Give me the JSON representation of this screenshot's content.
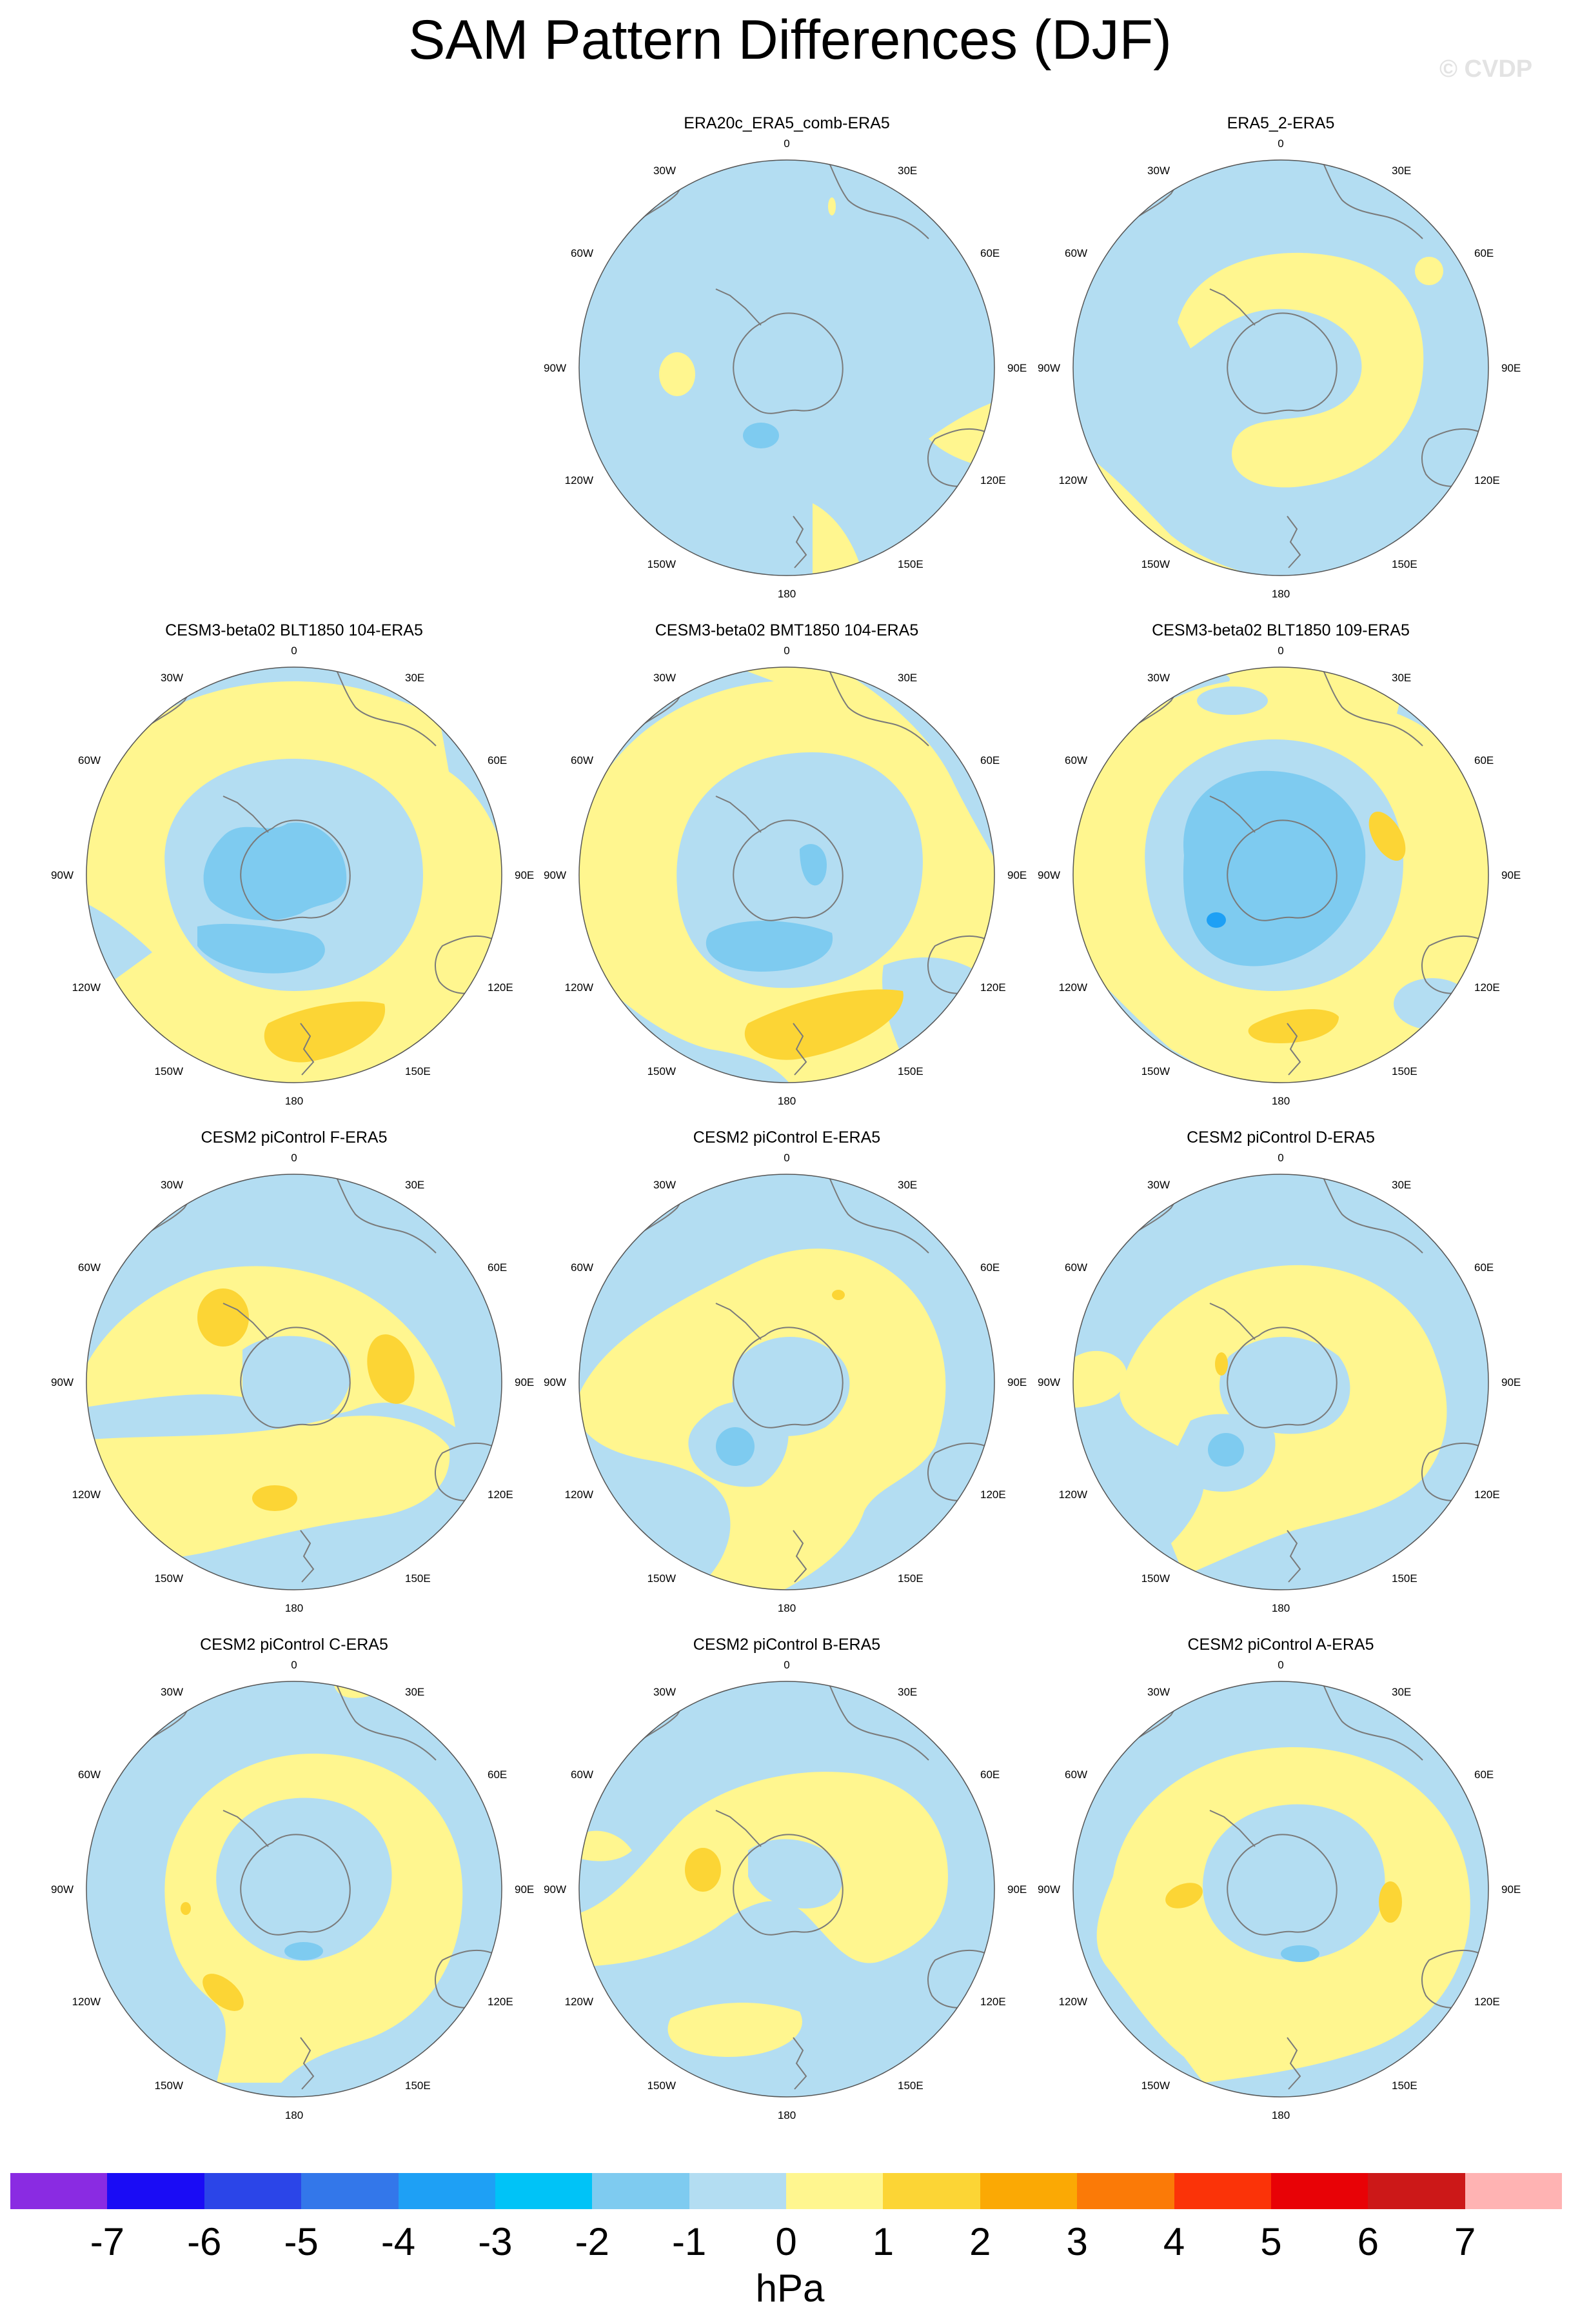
{
  "title": "SAM Pattern Differences (DJF)",
  "watermark": "© CVDP",
  "longitude_labels": [
    "0",
    "30E",
    "60E",
    "90E",
    "120E",
    "150E",
    "180",
    "150W",
    "120W",
    "90W",
    "60W",
    "30W"
  ],
  "panels": [
    {
      "title": "ERA20c_ERA5_comb-ERA5"
    },
    {
      "title": "ERA5_2-ERA5"
    },
    {
      "title": "CESM3-beta02 BLT1850 104-ERA5"
    },
    {
      "title": "CESM3-beta02 BMT1850 104-ERA5"
    },
    {
      "title": "CESM3-beta02 BLT1850 109-ERA5"
    },
    {
      "title": "CESM2 piControl F-ERA5"
    },
    {
      "title": "CESM2 piControl E-ERA5"
    },
    {
      "title": "CESM2 piControl D-ERA5"
    },
    {
      "title": "CESM2 piControl C-ERA5"
    },
    {
      "title": "CESM2 piControl B-ERA5"
    },
    {
      "title": "CESM2 piControl A-ERA5"
    }
  ],
  "colorbar": {
    "labels": [
      "-7",
      "-6",
      "-5",
      "-4",
      "-3",
      "-2",
      "-1",
      "0",
      "1",
      "2",
      "3",
      "4",
      "5",
      "6",
      "7"
    ],
    "colors": [
      "#8a2be2",
      "#1a0cf5",
      "#2b45e8",
      "#3377ea",
      "#1ea0f5",
      "#00c3f7",
      "#7ecbf0",
      "#b3ddf2",
      "#fff68f",
      "#fcd535",
      "#fba904",
      "#fb7a07",
      "#fb3308",
      "#e80206",
      "#cc1818",
      "#ffb3b3"
    ],
    "units": "hPa"
  }
}
